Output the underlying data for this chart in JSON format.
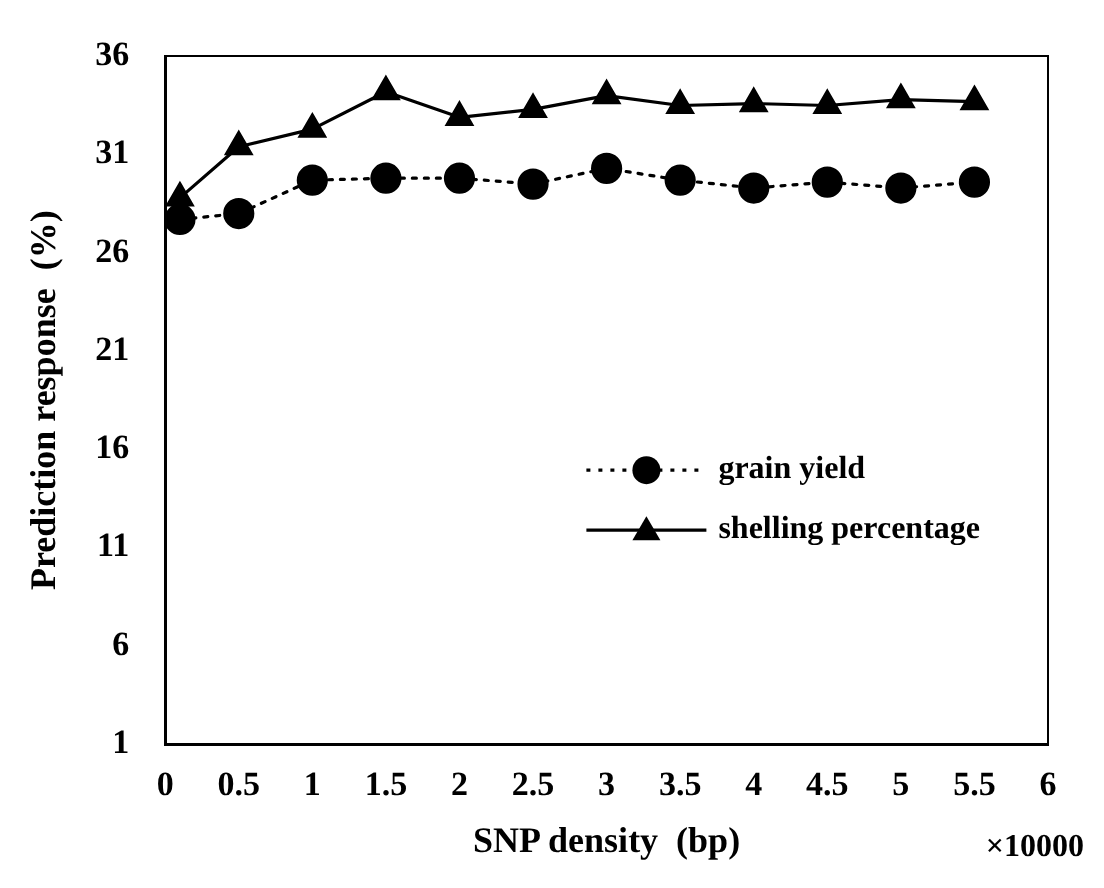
{
  "chart_data": {
    "type": "line",
    "xlabel": "SNP density  (bp)",
    "ylabel": "Prediction response  (%)",
    "annotations": [
      "×10000"
    ],
    "x": [
      0.1,
      0.5,
      1,
      1.5,
      2,
      2.5,
      3,
      3.5,
      4,
      4.5,
      5,
      5.5
    ],
    "series": [
      {
        "name": "grain yield",
        "color": "#000000",
        "marker": "circle",
        "line_style": "dotted",
        "values": [
          27.7,
          28.0,
          29.7,
          29.8,
          29.8,
          29.5,
          30.3,
          29.7,
          29.3,
          29.6,
          29.3,
          29.6
        ]
      },
      {
        "name": "shelling percentage",
        "color": "#000000",
        "marker": "triangle",
        "line_style": "solid",
        "values": [
          28.8,
          31.4,
          32.3,
          34.2,
          32.9,
          33.3,
          34.0,
          33.5,
          33.6,
          33.5,
          33.8,
          33.7
        ]
      }
    ],
    "xlim": [
      0,
      6
    ],
    "xticks": [
      0,
      0.5,
      1,
      1.5,
      2,
      2.5,
      3,
      3.5,
      4,
      4.5,
      5,
      5.5,
      6
    ],
    "ylim": [
      1,
      36
    ],
    "yticks": [
      1,
      6,
      11,
      16,
      21,
      26,
      31,
      36
    ],
    "grid": false,
    "legend": "right"
  }
}
